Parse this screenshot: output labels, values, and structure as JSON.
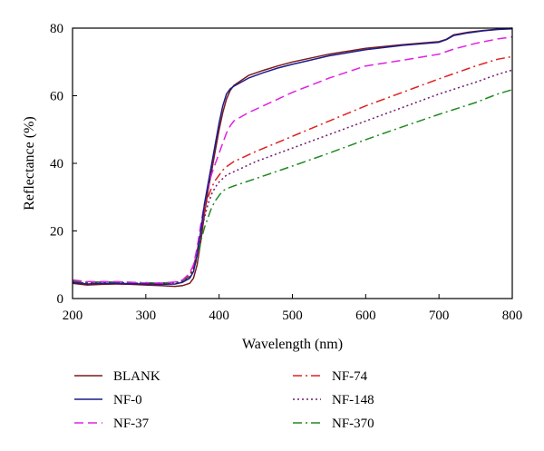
{
  "chart_data": {
    "type": "line",
    "xlabel": "Wavelength (nm)",
    "ylabel": "Reflectance (%)",
    "xlim": [
      200,
      800
    ],
    "ylim": [
      0,
      80
    ],
    "xticks": [
      "200",
      "300",
      "400",
      "500",
      "600",
      "700",
      "800"
    ],
    "yticks": [
      "0",
      "20",
      "40",
      "60",
      "80"
    ],
    "grid": false,
    "legend_position": "bottom",
    "series": [
      {
        "name": "BLANK",
        "color": "#7a1a1a",
        "dash": "solid",
        "points": [
          [
            200,
            4.5
          ],
          [
            220,
            4
          ],
          [
            240,
            4.2
          ],
          [
            260,
            4.3
          ],
          [
            280,
            4.2
          ],
          [
            300,
            4
          ],
          [
            320,
            3.8
          ],
          [
            340,
            3.6
          ],
          [
            350,
            3.8
          ],
          [
            360,
            4.5
          ],
          [
            365,
            6
          ],
          [
            370,
            10
          ],
          [
            375,
            17
          ],
          [
            380,
            25
          ],
          [
            385,
            32
          ],
          [
            390,
            38
          ],
          [
            395,
            44
          ],
          [
            400,
            50
          ],
          [
            405,
            55
          ],
          [
            410,
            59
          ],
          [
            415,
            61.5
          ],
          [
            420,
            63
          ],
          [
            430,
            64.5
          ],
          [
            440,
            66
          ],
          [
            460,
            67.5
          ],
          [
            480,
            68.8
          ],
          [
            500,
            70
          ],
          [
            550,
            72.3
          ],
          [
            600,
            74
          ],
          [
            650,
            75.1
          ],
          [
            700,
            76
          ],
          [
            710,
            76.7
          ],
          [
            720,
            78
          ],
          [
            740,
            78.8
          ],
          [
            760,
            79.3
          ],
          [
            780,
            79.7
          ],
          [
            800,
            80
          ]
        ]
      },
      {
        "name": "NF-0",
        "color": "#1c1c8c",
        "dash": "solid",
        "points": [
          [
            200,
            4.8
          ],
          [
            220,
            4.3
          ],
          [
            240,
            4.5
          ],
          [
            260,
            4.5
          ],
          [
            280,
            4.4
          ],
          [
            300,
            4.3
          ],
          [
            320,
            4.2
          ],
          [
            340,
            4.3
          ],
          [
            350,
            4.8
          ],
          [
            360,
            6
          ],
          [
            365,
            8
          ],
          [
            370,
            13
          ],
          [
            375,
            20
          ],
          [
            380,
            28
          ],
          [
            385,
            34
          ],
          [
            390,
            40
          ],
          [
            395,
            46
          ],
          [
            400,
            52
          ],
          [
            405,
            57
          ],
          [
            410,
            60.5
          ],
          [
            415,
            62
          ],
          [
            420,
            62.8
          ],
          [
            430,
            64
          ],
          [
            440,
            65.2
          ],
          [
            460,
            66.8
          ],
          [
            480,
            68.2
          ],
          [
            500,
            69.3
          ],
          [
            550,
            71.8
          ],
          [
            600,
            73.6
          ],
          [
            650,
            74.9
          ],
          [
            700,
            75.8
          ],
          [
            710,
            76.6
          ],
          [
            720,
            77.8
          ],
          [
            740,
            78.6
          ],
          [
            760,
            79.2
          ],
          [
            780,
            79.6
          ],
          [
            800,
            79.8
          ]
        ]
      },
      {
        "name": "NF-37",
        "color": "#e020e0",
        "dash": "10,5",
        "points": [
          [
            200,
            5.5
          ],
          [
            220,
            5
          ],
          [
            240,
            5
          ],
          [
            260,
            5
          ],
          [
            280,
            4.8
          ],
          [
            300,
            4.6
          ],
          [
            320,
            4.6
          ],
          [
            340,
            4.9
          ],
          [
            350,
            5.5
          ],
          [
            360,
            7.5
          ],
          [
            365,
            10
          ],
          [
            370,
            15
          ],
          [
            375,
            22
          ],
          [
            380,
            28
          ],
          [
            385,
            33
          ],
          [
            390,
            37
          ],
          [
            395,
            40
          ],
          [
            400,
            43
          ],
          [
            405,
            46
          ],
          [
            410,
            49
          ],
          [
            415,
            51
          ],
          [
            420,
            52.5
          ],
          [
            440,
            55
          ],
          [
            460,
            57
          ],
          [
            500,
            61
          ],
          [
            550,
            65.2
          ],
          [
            600,
            68.8
          ],
          [
            650,
            70.5
          ],
          [
            700,
            72.3
          ],
          [
            720,
            73.8
          ],
          [
            750,
            75.5
          ],
          [
            780,
            76.8
          ],
          [
            800,
            77.4
          ]
        ]
      },
      {
        "name": "NF-74",
        "color": "#e02020",
        "dash": "10,4,2,4",
        "points": [
          [
            200,
            5
          ],
          [
            220,
            4.7
          ],
          [
            240,
            4.9
          ],
          [
            260,
            4.8
          ],
          [
            280,
            4.7
          ],
          [
            300,
            4.6
          ],
          [
            320,
            4.5
          ],
          [
            340,
            4.8
          ],
          [
            350,
            5.3
          ],
          [
            360,
            7
          ],
          [
            365,
            9.5
          ],
          [
            370,
            14
          ],
          [
            375,
            20
          ],
          [
            380,
            26
          ],
          [
            385,
            30
          ],
          [
            390,
            33
          ],
          [
            395,
            35
          ],
          [
            400,
            36.5
          ],
          [
            405,
            38
          ],
          [
            410,
            39
          ],
          [
            420,
            40.5
          ],
          [
            450,
            43.5
          ],
          [
            500,
            48
          ],
          [
            550,
            52.5
          ],
          [
            600,
            57
          ],
          [
            650,
            61
          ],
          [
            700,
            65
          ],
          [
            750,
            68.8
          ],
          [
            780,
            70.8
          ],
          [
            800,
            71.6
          ]
        ]
      },
      {
        "name": "NF-148",
        "color": "#701a70",
        "dash": "2,3",
        "points": [
          [
            200,
            4.8
          ],
          [
            220,
            4.6
          ],
          [
            240,
            4.7
          ],
          [
            260,
            4.7
          ],
          [
            280,
            4.6
          ],
          [
            300,
            4.5
          ],
          [
            320,
            4.5
          ],
          [
            340,
            4.7
          ],
          [
            350,
            5.1
          ],
          [
            360,
            6.5
          ],
          [
            365,
            9
          ],
          [
            370,
            13
          ],
          [
            375,
            19
          ],
          [
            380,
            24
          ],
          [
            385,
            28
          ],
          [
            390,
            31
          ],
          [
            395,
            33
          ],
          [
            400,
            34.5
          ],
          [
            405,
            35.5
          ],
          [
            410,
            36.5
          ],
          [
            420,
            37.5
          ],
          [
            450,
            40.5
          ],
          [
            500,
            44.5
          ],
          [
            550,
            48.5
          ],
          [
            600,
            52.5
          ],
          [
            650,
            56.5
          ],
          [
            700,
            60.5
          ],
          [
            750,
            64
          ],
          [
            780,
            66.3
          ],
          [
            800,
            67.6
          ]
        ]
      },
      {
        "name": "NF-370",
        "color": "#208a20",
        "dash": "10,4,2,4",
        "points": [
          [
            200,
            5.2
          ],
          [
            220,
            4.8
          ],
          [
            240,
            4.9
          ],
          [
            260,
            4.9
          ],
          [
            280,
            4.8
          ],
          [
            300,
            4.7
          ],
          [
            320,
            4.6
          ],
          [
            340,
            4.8
          ],
          [
            350,
            5.2
          ],
          [
            360,
            6.5
          ],
          [
            365,
            8.5
          ],
          [
            370,
            12
          ],
          [
            375,
            17
          ],
          [
            380,
            21
          ],
          [
            385,
            24
          ],
          [
            390,
            27
          ],
          [
            395,
            29
          ],
          [
            400,
            30.5
          ],
          [
            405,
            31.8
          ],
          [
            410,
            32.5
          ],
          [
            420,
            33.3
          ],
          [
            450,
            35.5
          ],
          [
            500,
            39.2
          ],
          [
            550,
            43
          ],
          [
            600,
            47
          ],
          [
            650,
            50.8
          ],
          [
            700,
            54.5
          ],
          [
            750,
            58
          ],
          [
            780,
            60.5
          ],
          [
            800,
            61.8
          ]
        ]
      }
    ]
  }
}
